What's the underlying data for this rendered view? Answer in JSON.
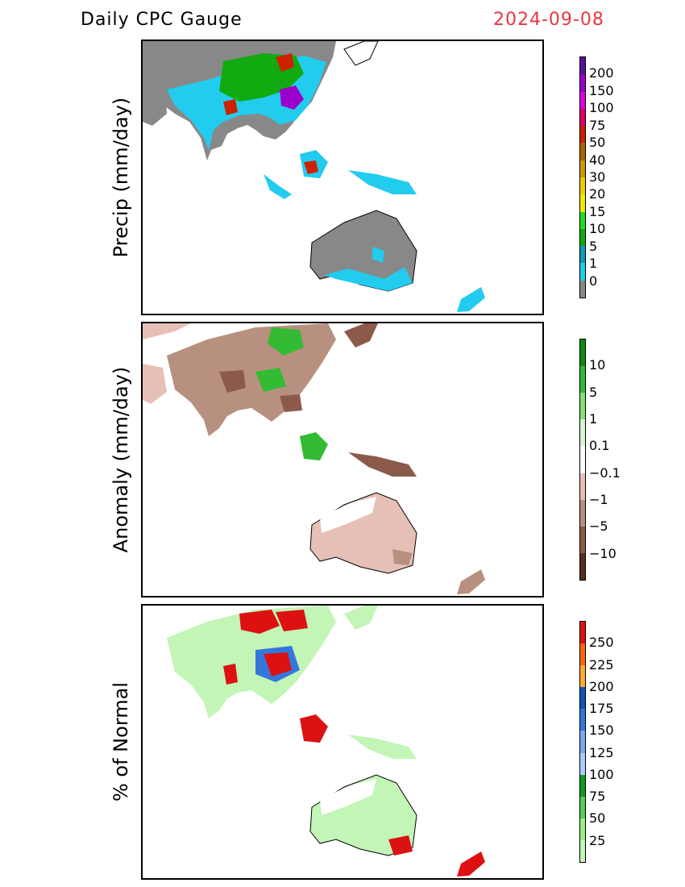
{
  "header": {
    "title": "Daily CPC Gauge",
    "date": "2024-09-08"
  },
  "panels": [
    {
      "ylabel": "Precip (mm/day)",
      "colorbar": {
        "colors": [
          "#888888",
          "#22ccee",
          "#1199bb",
          "#11aa11",
          "#22dd22",
          "#eeee00",
          "#eecc00",
          "#cc9900",
          "#aa6600",
          "#cc2200",
          "#dd0066",
          "#dd00dd",
          "#9900cc",
          "#551199"
        ],
        "labels": [
          "0",
          "1",
          "5",
          "10",
          "15",
          "20",
          "30",
          "40",
          "50",
          "75",
          "100",
          "150",
          "200"
        ]
      }
    },
    {
      "ylabel": "Anomaly (mm/day)",
      "colorbar": {
        "colors": [
          "#5a2e22",
          "#8b5a4a",
          "#b89080",
          "#e6c0b6",
          "#ffffff",
          "#d8f5d0",
          "#88dd77",
          "#33bb33",
          "#118811"
        ],
        "labels": [
          "−10",
          "−5",
          "−1",
          "−0.1",
          "0.1",
          "1",
          "5",
          "10"
        ]
      }
    },
    {
      "ylabel": "% of Normal",
      "colorbar": {
        "colors": [
          "#c2f5b6",
          "#99ee88",
          "#55cc55",
          "#119922",
          "#aaccff",
          "#77aaee",
          "#3377dd",
          "#1155bb",
          "#ffaa33",
          "#ff6611",
          "#dd1111"
        ],
        "labels": [
          "25",
          "50",
          "75",
          "100",
          "125",
          "150",
          "175",
          "200",
          "225",
          "250"
        ]
      }
    }
  ]
}
